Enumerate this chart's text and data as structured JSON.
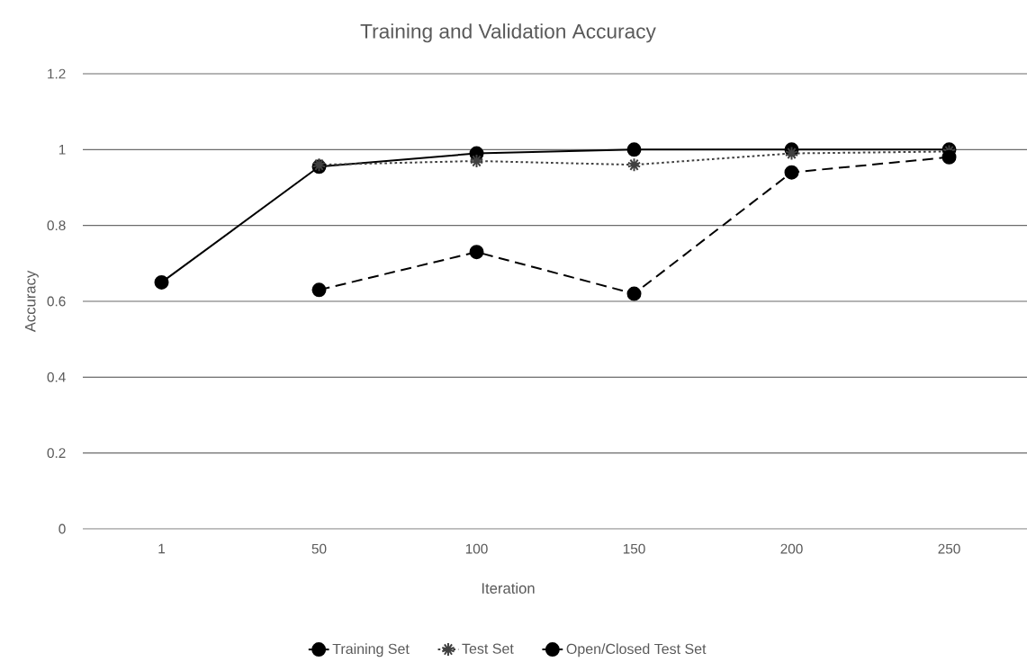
{
  "chart_data": {
    "type": "line",
    "title": "Training and Validation Accuracy",
    "xlabel": "Iteration",
    "ylabel": "Accuracy",
    "categories": [
      "1",
      "50",
      "100",
      "150",
      "200",
      "250"
    ],
    "series": [
      {
        "name": "Training Set",
        "color": "#000000",
        "marker": "circle",
        "line_style": "solid",
        "values": [
          0.65,
          0.955,
          0.99,
          1.0,
          1.0,
          1.0
        ]
      },
      {
        "name": "Test Set",
        "color": "#404040",
        "marker": "cross",
        "line_style": "dotted",
        "values": [
          null,
          0.96,
          0.97,
          0.96,
          0.99,
          0.995
        ]
      },
      {
        "name": "Open/Closed Test Set",
        "color": "#000000",
        "marker": "circle",
        "line_style": "dashed",
        "values": [
          null,
          0.63,
          0.73,
          0.62,
          0.94,
          0.98
        ]
      }
    ],
    "ylim": [
      0,
      1.2
    ],
    "yticks": [
      0,
      0.2,
      0.4,
      0.6,
      0.8,
      1,
      1.2
    ],
    "grid": "y",
    "legend": "bottom"
  }
}
